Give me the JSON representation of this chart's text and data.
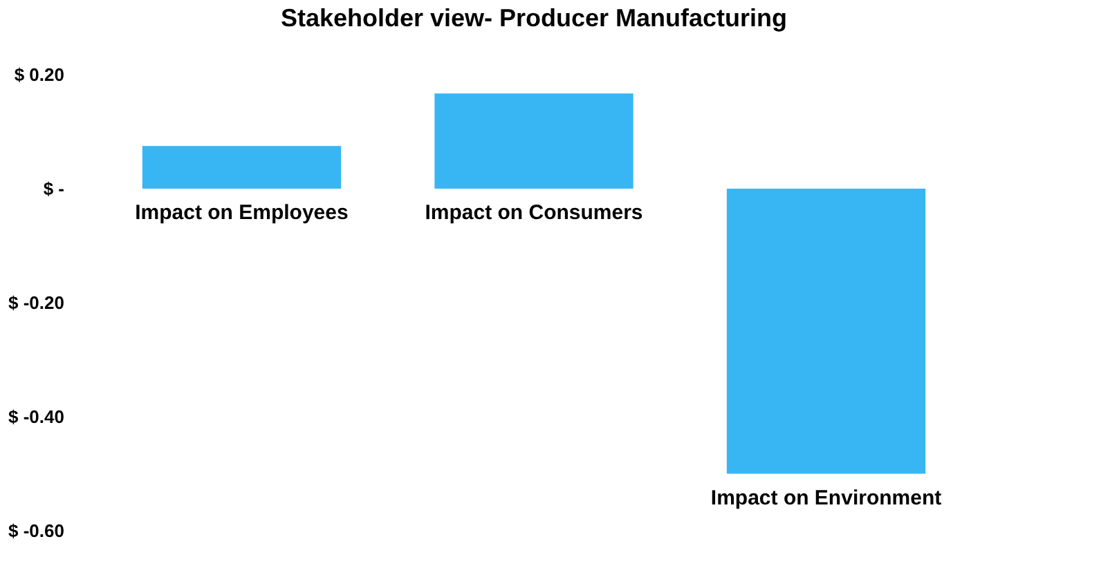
{
  "chart_data": {
    "type": "bar",
    "title": "Stakeholder view- Producer Manufacturing",
    "categories": [
      "Impact on Employees",
      "Impact on Consumers",
      "Impact on Environment"
    ],
    "values": [
      0.075,
      0.167,
      -0.5
    ],
    "color": "#38b6f3",
    "ylim": [
      -0.6,
      0.2
    ],
    "yticks": [
      {
        "value": 0.2,
        "label": "$ 0.20"
      },
      {
        "value": 0,
        "label": "$ -"
      },
      {
        "value": -0.2,
        "label": "$ -0.20"
      },
      {
        "value": -0.4,
        "label": "$ -0.40"
      },
      {
        "value": -0.6,
        "label": "$ -0.60"
      }
    ],
    "grid": false
  }
}
